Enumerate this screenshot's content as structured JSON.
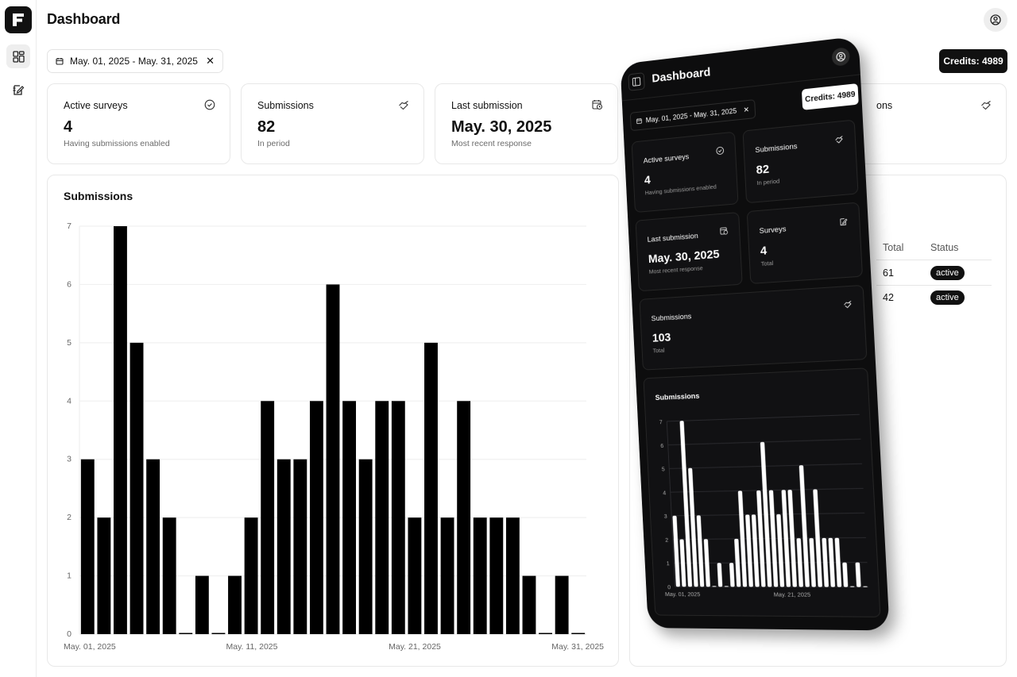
{
  "header": {
    "title": "Dashboard"
  },
  "date_range": {
    "label": "May. 01, 2025 - May. 31, 2025"
  },
  "credits": {
    "label": "Credits: 4989"
  },
  "stats": [
    {
      "label": "Active surveys",
      "value": "4",
      "sub": "Having submissions enabled",
      "icon": "check-circle-icon"
    },
    {
      "label": "Submissions",
      "value": "82",
      "sub": "In period",
      "icon": "handshake-icon"
    },
    {
      "label": "Last submission",
      "value": "May. 30, 2025",
      "sub": "Most recent response",
      "icon": "calendar-clock-icon"
    }
  ],
  "right_partial": {
    "stat_label_fragment": "ons"
  },
  "main_chart": {
    "title": "Submissions"
  },
  "table": {
    "headers": [
      "Total",
      "Status"
    ],
    "rows": [
      {
        "total": "61",
        "status": "active"
      },
      {
        "total": "42",
        "status": "active"
      }
    ]
  },
  "phone": {
    "title": "Dashboard",
    "date_range": "May. 01, 2025 - May. 31, 2025",
    "credits": "Credits: 4989",
    "cards": [
      {
        "label": "Active surveys",
        "value": "4",
        "sub": "Having submissions enabled"
      },
      {
        "label": "Submissions",
        "value": "82",
        "sub": "In period"
      },
      {
        "label": "Last submission",
        "value": "May. 30, 2025",
        "sub": "Most recent response"
      },
      {
        "label": "Surveys",
        "value": "4",
        "sub": "Total"
      },
      {
        "label": "Submissions",
        "value": "103",
        "sub": "Total"
      }
    ],
    "chart_title": "Submissions",
    "chart_x_labels": [
      "May. 01, 2025",
      "May. 21, 2025"
    ]
  },
  "chart_data": {
    "type": "bar",
    "title": "Submissions",
    "xlabel": "",
    "ylabel": "",
    "ylim": [
      0,
      7
    ],
    "yticks": [
      0,
      1,
      2,
      3,
      4,
      5,
      6,
      7
    ],
    "x_tick_labels": [
      "May. 01, 2025",
      "May. 11, 2025",
      "May. 21, 2025",
      "May. 31, 2025"
    ],
    "categories": [
      "May. 01",
      "May. 02",
      "May. 03",
      "May. 04",
      "May. 05",
      "May. 06",
      "May. 07",
      "May. 08",
      "May. 09",
      "May. 10",
      "May. 11",
      "May. 12",
      "May. 13",
      "May. 14",
      "May. 15",
      "May. 16",
      "May. 17",
      "May. 18",
      "May. 19",
      "May. 20",
      "May. 21",
      "May. 22",
      "May. 23",
      "May. 24",
      "May. 25",
      "May. 26",
      "May. 27",
      "May. 28",
      "May. 29",
      "May. 30",
      "May. 31"
    ],
    "values": [
      3,
      2,
      7,
      5,
      3,
      2,
      0,
      1,
      0,
      1,
      2,
      4,
      3,
      3,
      4,
      6,
      4,
      3,
      4,
      4,
      2,
      5,
      2,
      4,
      2,
      2,
      2,
      1,
      0,
      1,
      0
    ],
    "grid": true,
    "colors": {
      "bar": "#000000",
      "phone_bar": "#ffffff"
    }
  }
}
